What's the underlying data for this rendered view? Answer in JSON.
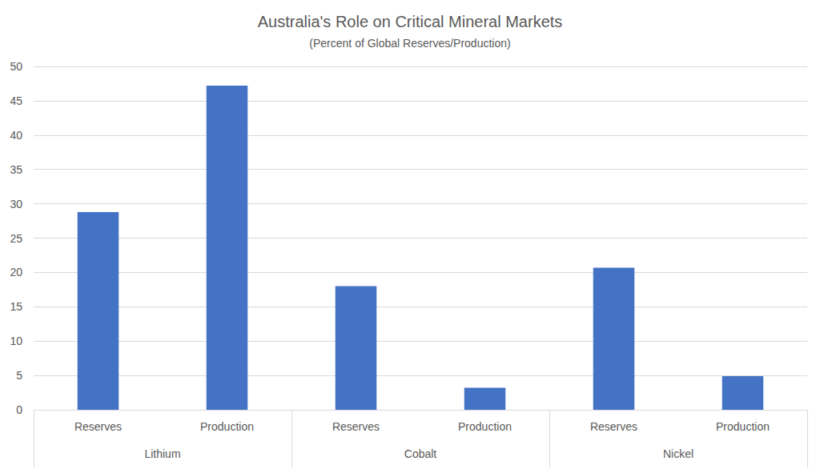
{
  "chart_data": {
    "type": "bar",
    "title": "Australia's Role on Critical Mineral Markets",
    "subtitle": "(Percent of Global Reserves/Production)",
    "categories": [
      "Reserves",
      "Production",
      "Reserves",
      "Production",
      "Reserves",
      "Production"
    ],
    "groups": [
      "Lithium",
      "Cobalt",
      "Nickel"
    ],
    "values": [
      28.8,
      47.2,
      18,
      3.2,
      20.7,
      4.9
    ],
    "color": "#4472c4",
    "ylim": [
      0,
      50
    ],
    "yticks": [
      0,
      5,
      10,
      15,
      20,
      25,
      30,
      35,
      40,
      45,
      50
    ],
    "grid": true
  }
}
